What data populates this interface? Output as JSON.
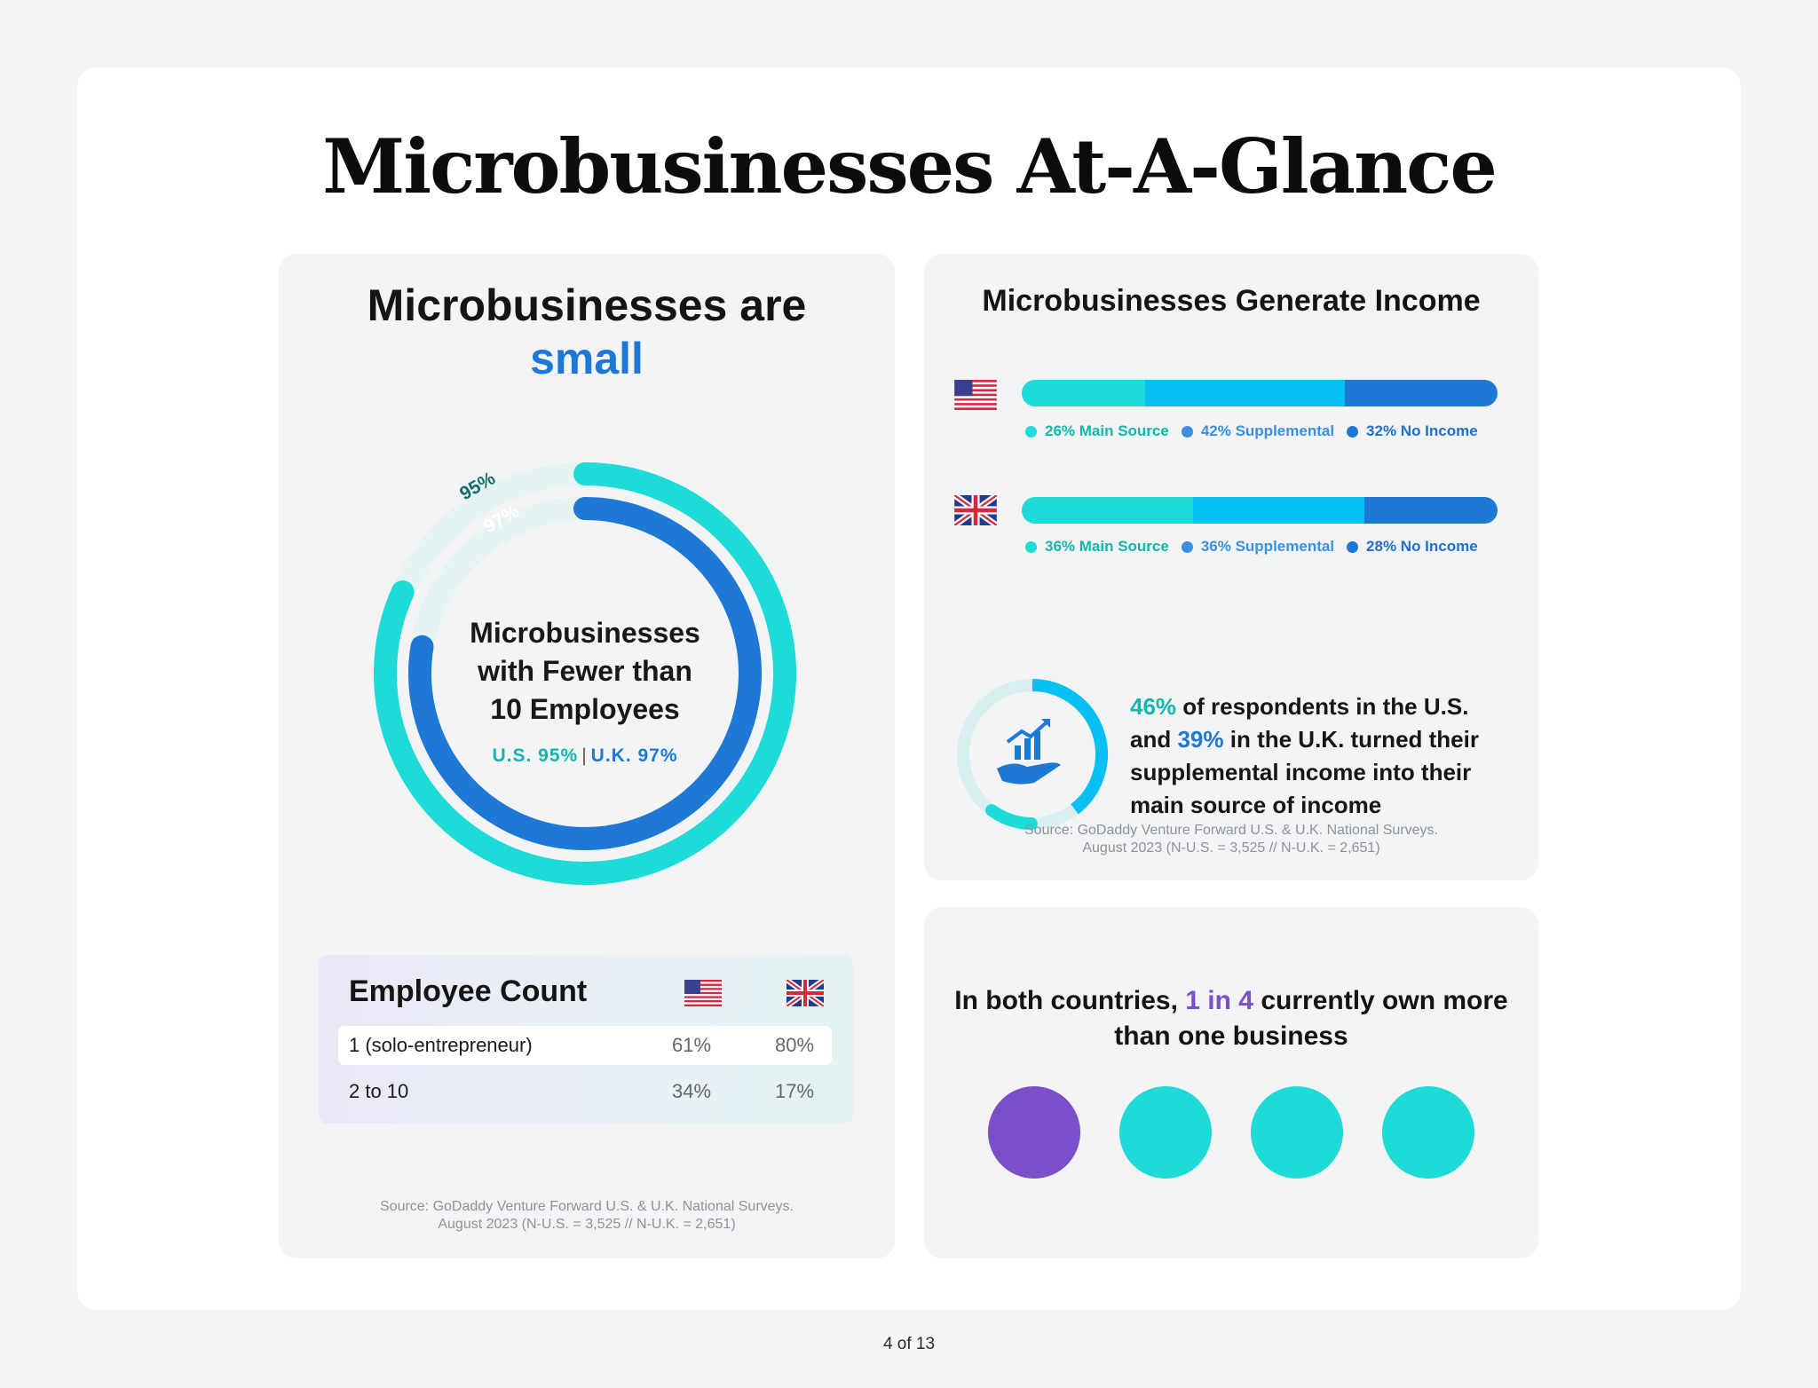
{
  "page": {
    "title": "Microbusinesses At-A-Glance",
    "page_number": "4 of 13"
  },
  "size_card": {
    "title_line1": "Microbusinesses are",
    "title_accent": "small",
    "ring_center_line1": "Microbusinesses",
    "ring_center_line2": "with Fewer than",
    "ring_center_line3": "10 Employees",
    "stat_us": "U.S. 95%",
    "stat_separator": "|",
    "stat_uk": "U.K. 97%",
    "ring_label_outer": "95%",
    "ring_label_inner": "97%",
    "ring_values": {
      "outer": 95,
      "inner": 97
    },
    "employee_table": {
      "title": "Employee Count",
      "rows": [
        {
          "label": "1 (solo-entrepreneur)",
          "us": "61%",
          "uk": "80%"
        },
        {
          "label": "2 to 10",
          "us": "34%",
          "uk": "17%"
        }
      ]
    },
    "source_line1": "Source: GoDaddy Venture Forward U.S. & U.K. National Surveys.",
    "source_line2": "August 2023 (N-U.S. = 3,525 // N-U.K. = 2,651)"
  },
  "income_card": {
    "title": "Microbusinesses Generate Income",
    "us": {
      "values": [
        26,
        42,
        32
      ],
      "legend": [
        "26% Main Source",
        "42% Supplemental",
        "32% No Income"
      ]
    },
    "uk": {
      "values": [
        36,
        36,
        28
      ],
      "legend": [
        "36% Main Source",
        "36% Supplemental",
        "28% No Income"
      ]
    },
    "stat_pct_us": "46%",
    "stat_part1": "of respondents in the U.S. and",
    "stat_pct_uk": "39%",
    "stat_part2": "in the U.K. turned their supplemental income into their main source of income",
    "source_line1": "Source: GoDaddy Venture Forward U.S. & U.K. National Surveys.",
    "source_line2": "August 2023 (N-U.S. = 3,525 // N-U.K. = 2,651)"
  },
  "ownership_card": {
    "text_part1": "In both countries,",
    "highlight": "1 in 4",
    "text_part2": "currently own more than one business",
    "owner_ratio": "1 in 4"
  },
  "colors": {
    "teal": "#1edbd7",
    "blue": "#1e78d6",
    "sky": "#08bff2",
    "purple": "#7a4fc9"
  },
  "icons": [
    "us-flag-icon",
    "uk-flag-icon",
    "growth-hand-icon"
  ]
}
